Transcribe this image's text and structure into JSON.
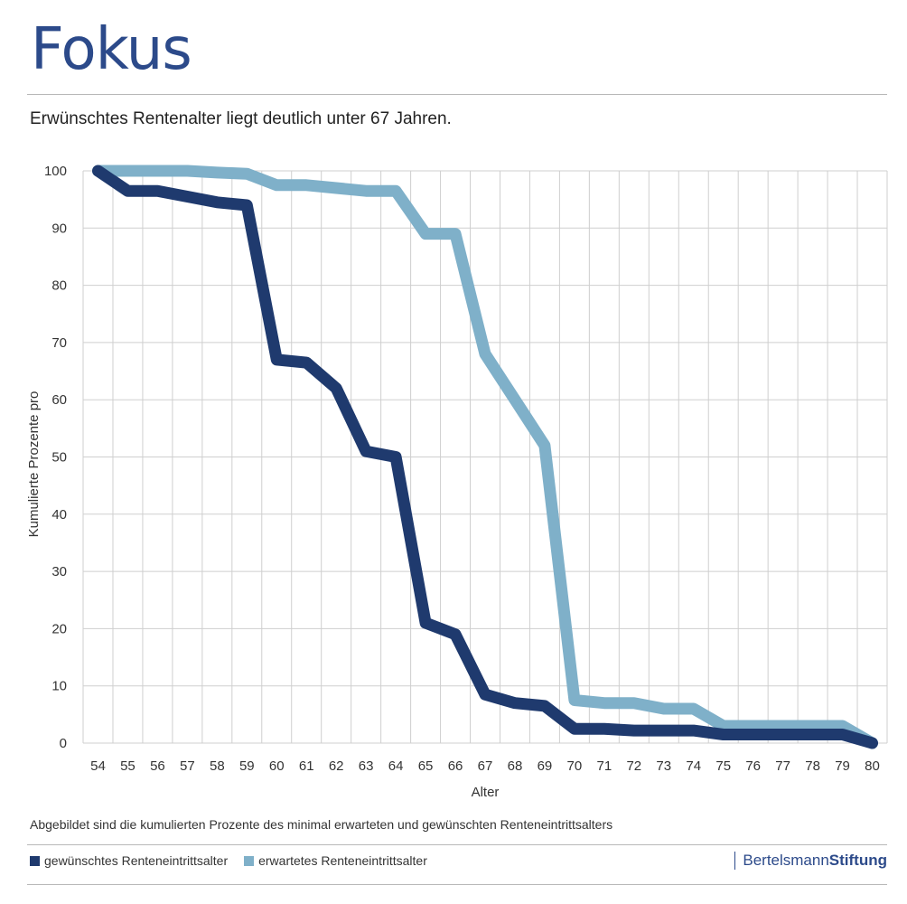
{
  "header": {
    "title": "Fokus",
    "subtitle": "Erwünschtes Rentenalter liegt deutlich unter 67 Jahren."
  },
  "footer": {
    "caption": "Abgebildet sind die kumulierten Prozente des minimal erwarteten und gewünschten Renteneintrittsalters",
    "brand_regular": "Bertelsmann",
    "brand_bold": "Stiftung"
  },
  "colors": {
    "title": "#2c4a8a",
    "series_desired": "#1f3a6e",
    "series_expected": "#7fb0c9",
    "grid": "#cfcfcf"
  },
  "chart_data": {
    "type": "line",
    "title": "",
    "xlabel": "Alter",
    "ylabel": "Kumulierte Prozente pro",
    "x": [
      54,
      55,
      56,
      57,
      58,
      59,
      60,
      61,
      62,
      63,
      64,
      65,
      66,
      67,
      68,
      69,
      70,
      71,
      72,
      73,
      74,
      75,
      76,
      77,
      78,
      79,
      80
    ],
    "ylim": [
      0,
      100
    ],
    "yticks": [
      0,
      10,
      20,
      30,
      40,
      50,
      60,
      70,
      80,
      90,
      100
    ],
    "grid": true,
    "legend_position": "bottom",
    "series": [
      {
        "name": "gewünschtes Renteneintrittsalter",
        "values": [
          100,
          96.5,
          96.5,
          95.5,
          94.5,
          94,
          67,
          66.5,
          62,
          51,
          50,
          21,
          19,
          8.5,
          7,
          6.5,
          2.5,
          2.5,
          2.2,
          2.2,
          2.2,
          1.5,
          1.5,
          1.5,
          1.5,
          1.5,
          0
        ]
      },
      {
        "name": "erwartetes Renteneintrittsalter",
        "values": [
          100,
          100,
          100,
          100,
          99.7,
          99.5,
          97.5,
          97.5,
          97,
          96.5,
          96.5,
          89,
          89,
          68,
          60,
          52,
          7.5,
          7,
          7,
          6,
          6,
          3,
          3,
          3,
          3,
          3,
          0
        ]
      }
    ]
  }
}
